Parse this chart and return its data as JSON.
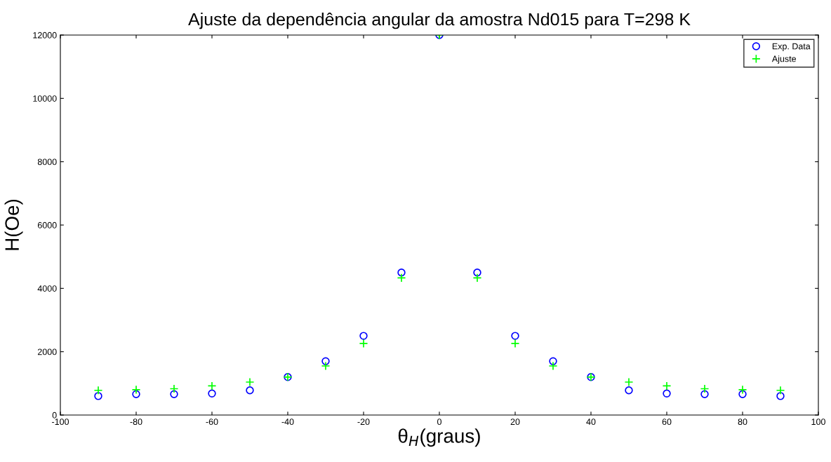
{
  "chart_data": {
    "type": "scatter",
    "title": "Ajuste da dependência angular da amostra Nd015 para T=298 K",
    "xlabel": "θ$_{H}$(graus)",
    "ylabel": "H(Oe)",
    "x": [
      -90,
      -80,
      -70,
      -60,
      -50,
      -40,
      -30,
      -20,
      -10,
      0,
      10,
      20,
      30,
      40,
      50,
      60,
      70,
      80,
      90
    ],
    "series": [
      {
        "name": "Exp. Data",
        "color": "#0000ff",
        "marker": "circle",
        "values": [
          600,
          660,
          660,
          680,
          780,
          1200,
          1700,
          2500,
          4500,
          12000,
          4500,
          2500,
          1700,
          1200,
          780,
          680,
          660,
          660,
          600
        ]
      },
      {
        "name": "Ajuste",
        "color": "#00ff00",
        "marker": "cross",
        "values": [
          780,
          800,
          830,
          920,
          1040,
          1200,
          1550,
          2260,
          4330,
          12000,
          4330,
          2260,
          1550,
          1200,
          1040,
          920,
          830,
          800,
          780
        ]
      }
    ],
    "xlim": [
      -100,
      100
    ],
    "xticks": [
      -100,
      -80,
      -60,
      -40,
      -20,
      0,
      20,
      40,
      60,
      80,
      100
    ],
    "ylim": [
      0,
      12000
    ],
    "yticks": [
      0,
      2000,
      4000,
      6000,
      8000,
      10000,
      12000
    ],
    "grid": false,
    "legend": "top right"
  }
}
